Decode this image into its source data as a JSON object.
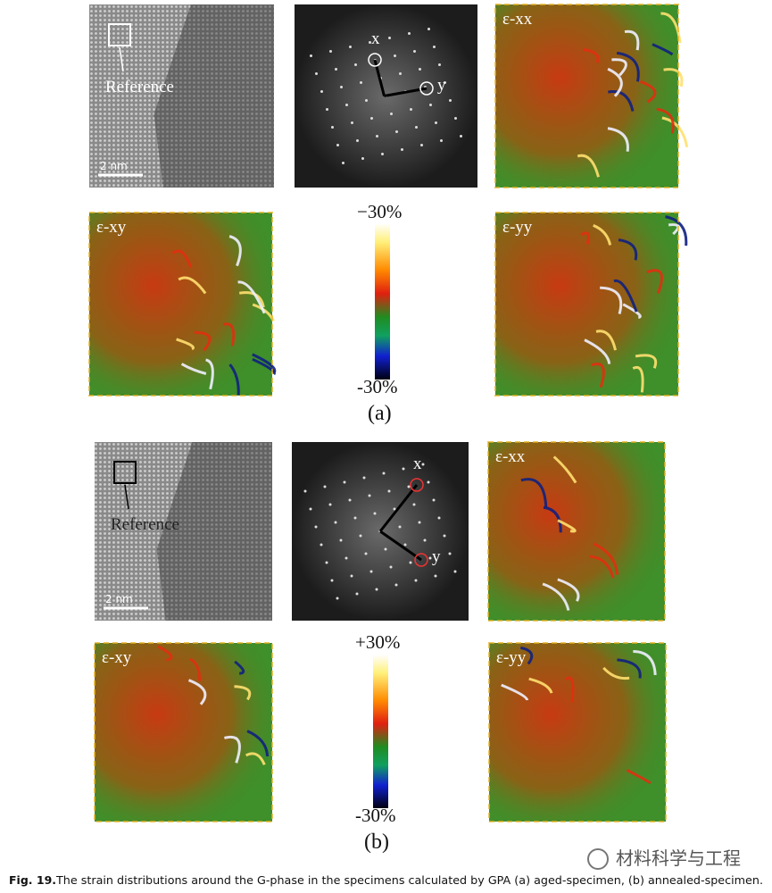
{
  "panel_a": {
    "hrtem": {
      "reference": "Reference",
      "scale_bar": "2 nm"
    },
    "fft": {
      "x_label": "x",
      "y_label": "y"
    },
    "maps": [
      "ε-xx",
      "ε-xy",
      "ε-yy"
    ],
    "colorbar": {
      "top": "−30%",
      "bottom": "-30%"
    },
    "label": "(a)"
  },
  "panel_b": {
    "hrtem": {
      "reference": "Reference",
      "scale_bar": "2 nm"
    },
    "fft": {
      "x_label": "x",
      "y_label": "y"
    },
    "maps": [
      "ε-xx",
      "ε-xy",
      "ε-yy"
    ],
    "colorbar": {
      "top": "+30%",
      "bottom": "-30%"
    },
    "label": "(b)"
  },
  "caption": {
    "label": "Fig. 19.",
    "text": "The strain distributions around the G-phase in the specimens calculated by GPA (a) aged-specimen, (b) annealed-specimen."
  },
  "watermark": "材料科学与工程"
}
